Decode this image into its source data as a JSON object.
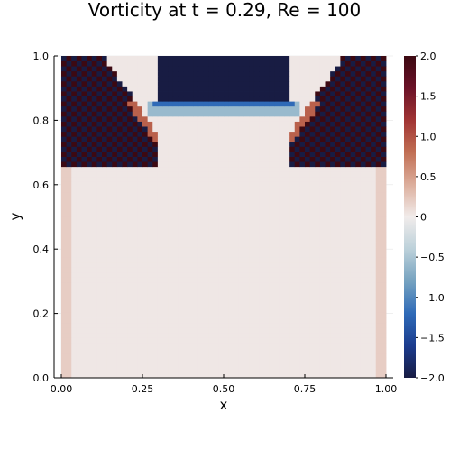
{
  "chart_data": {
    "type": "heatmap",
    "title": "Vorticity at t = 0.29, Re = 100",
    "xlabel": "x",
    "ylabel": "y",
    "xlim": [
      0.0,
      1.0
    ],
    "ylim": [
      0.0,
      1.0
    ],
    "x_ticks": [
      "0.00",
      "0.25",
      "0.50",
      "0.75",
      "1.00"
    ],
    "x_tick_values": [
      0.0,
      0.25,
      0.5,
      0.75,
      1.0
    ],
    "y_ticks": [
      "0.0",
      "0.2",
      "0.4",
      "0.6",
      "0.8",
      "1.0"
    ],
    "y_tick_values": [
      0.0,
      0.2,
      0.4,
      0.6,
      0.8,
      1.0
    ],
    "colorbar": {
      "clim": [
        -2.0,
        2.0
      ],
      "ticks": [
        "−2.0",
        "−1.5",
        "−1.0",
        "−0.5",
        "0",
        "0.5",
        "1.0",
        "1.5",
        "2.0"
      ],
      "tick_values": [
        -2.0,
        -1.5,
        -1.0,
        -0.5,
        0.0,
        0.5,
        1.0,
        1.5,
        2.0
      ],
      "colormap": "balance",
      "colormap_stops": [
        "#181c43",
        "#1b3c8e",
        "#2f6bb8",
        "#75a2c0",
        "#bcd1da",
        "#f1eceb",
        "#dcae9c",
        "#c16f54",
        "#a13534",
        "#6b1228",
        "#3c0912"
      ]
    },
    "grid": true,
    "grid_resolution": [
      64,
      64
    ],
    "field_description": {
      "lid_band_y": [
        0.855,
        1.0
      ],
      "lid_value": -2.0,
      "upper_corner_regions": "alternating +2/-2 checkerboard",
      "interior_value": 0.03
    }
  }
}
